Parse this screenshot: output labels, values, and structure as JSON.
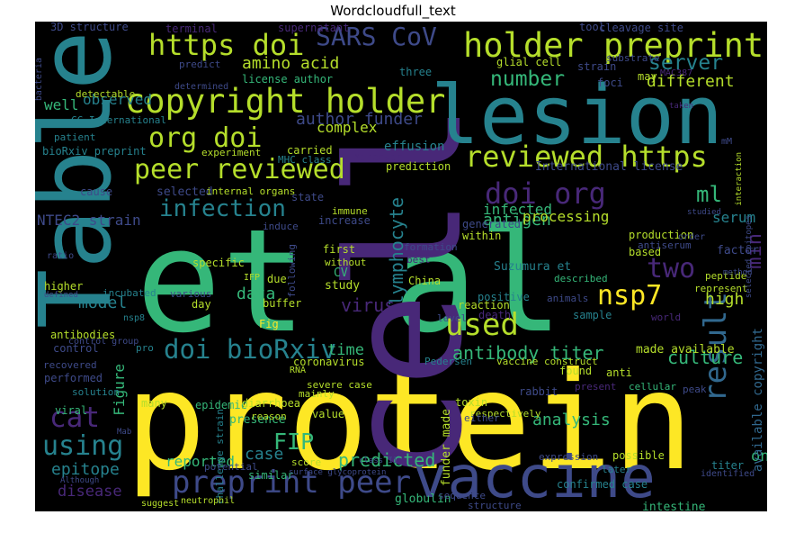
{
  "title": "Wordcloudfull_text",
  "colors": {
    "background": "#000000",
    "yellow": "#fde725",
    "light_green": "#b5de2b",
    "green": "#35b779",
    "teal": "#1f9e89",
    "blue_teal": "#26828e",
    "blue": "#31688e",
    "indigo": "#3e4a89",
    "purple": "#482878",
    "dark_purple": "#440154"
  },
  "words": [
    "et al",
    "protein",
    "cell",
    "Table",
    "lesion",
    "vaccine",
    "copyright holder",
    "holder preprint",
    "https doi",
    "peer reviewed",
    "reviewed https",
    "org doi",
    "preprint peer",
    "doi bioRxiv",
    "doi org",
    "SARS CoV",
    "infection",
    "used",
    "result",
    "using",
    "cat",
    "nsp7",
    "two",
    "number",
    "server",
    "different",
    "ml",
    "min",
    "lymphocyte",
    "amino acid",
    "author funder",
    "antibody titer",
    "antigen",
    "virus",
    "FIP",
    "culture",
    "epitope",
    "model",
    "high",
    "data",
    "analysis",
    "case",
    "reported",
    "disease",
    "predicted",
    "time",
    "observed",
    "infected",
    "processing",
    "serum",
    "Figure",
    "one",
    "NTEC2 strain",
    "well",
    "complex",
    "effusion",
    "prediction",
    "bioRxiv preprint",
    "International license",
    "made available",
    "available copyright",
    "funder made",
    "challenge strain",
    "presence",
    "value",
    "China",
    "Suzumura et",
    "factor",
    "production",
    "based",
    "positive",
    "glial cell",
    "strain",
    "three",
    "foci",
    "may",
    "cleavage site",
    "supernatant",
    "terminal",
    "3D structure",
    "tool",
    "substrate",
    "license author",
    "predict",
    "detectable",
    "CC International",
    "patient",
    "carried",
    "MHC class",
    "Moreover",
    "experiment",
    "selected",
    "internal organs",
    "state",
    "immune",
    "increase",
    "generated",
    "within",
    "induce",
    "cause",
    "first",
    "CV",
    "study",
    "without",
    "following",
    "formation",
    "described",
    "best",
    "antiserum",
    "specific",
    "higher",
    "incubated",
    "various",
    "due",
    "buffer",
    "Fig",
    "day",
    "reaction",
    "death",
    "level",
    "sample",
    "animals",
    "peptide",
    "represent",
    "world",
    "nsp8",
    "antibodies",
    "control",
    "recovered",
    "performed",
    "solution",
    "viral",
    "many",
    "epidemic",
    "diarrhoea",
    "mainly",
    "toxin",
    "respectively",
    "either",
    "rabbit",
    "vaccine construct",
    "anti",
    "peak",
    "found",
    "cellular",
    "present",
    "expression",
    "possible",
    "titer",
    "potential",
    "reason",
    "score",
    "severe case",
    "coronavirus",
    "Pedersen",
    "RNA",
    "similar",
    "globulin",
    "confirmed case",
    "intestine",
    "structure",
    "sequence",
    "later",
    "identified",
    "suggest",
    "neutrophil",
    "Although",
    "surface glycoprotein",
    "class II",
    "MAC387",
    "taken",
    "determined",
    "mM",
    "interaction",
    "IFP",
    "ratio",
    "bacteria",
    "order",
    "studied",
    "selected epitopes",
    "defined",
    "method",
    "pro",
    "control group",
    "Mab"
  ]
}
